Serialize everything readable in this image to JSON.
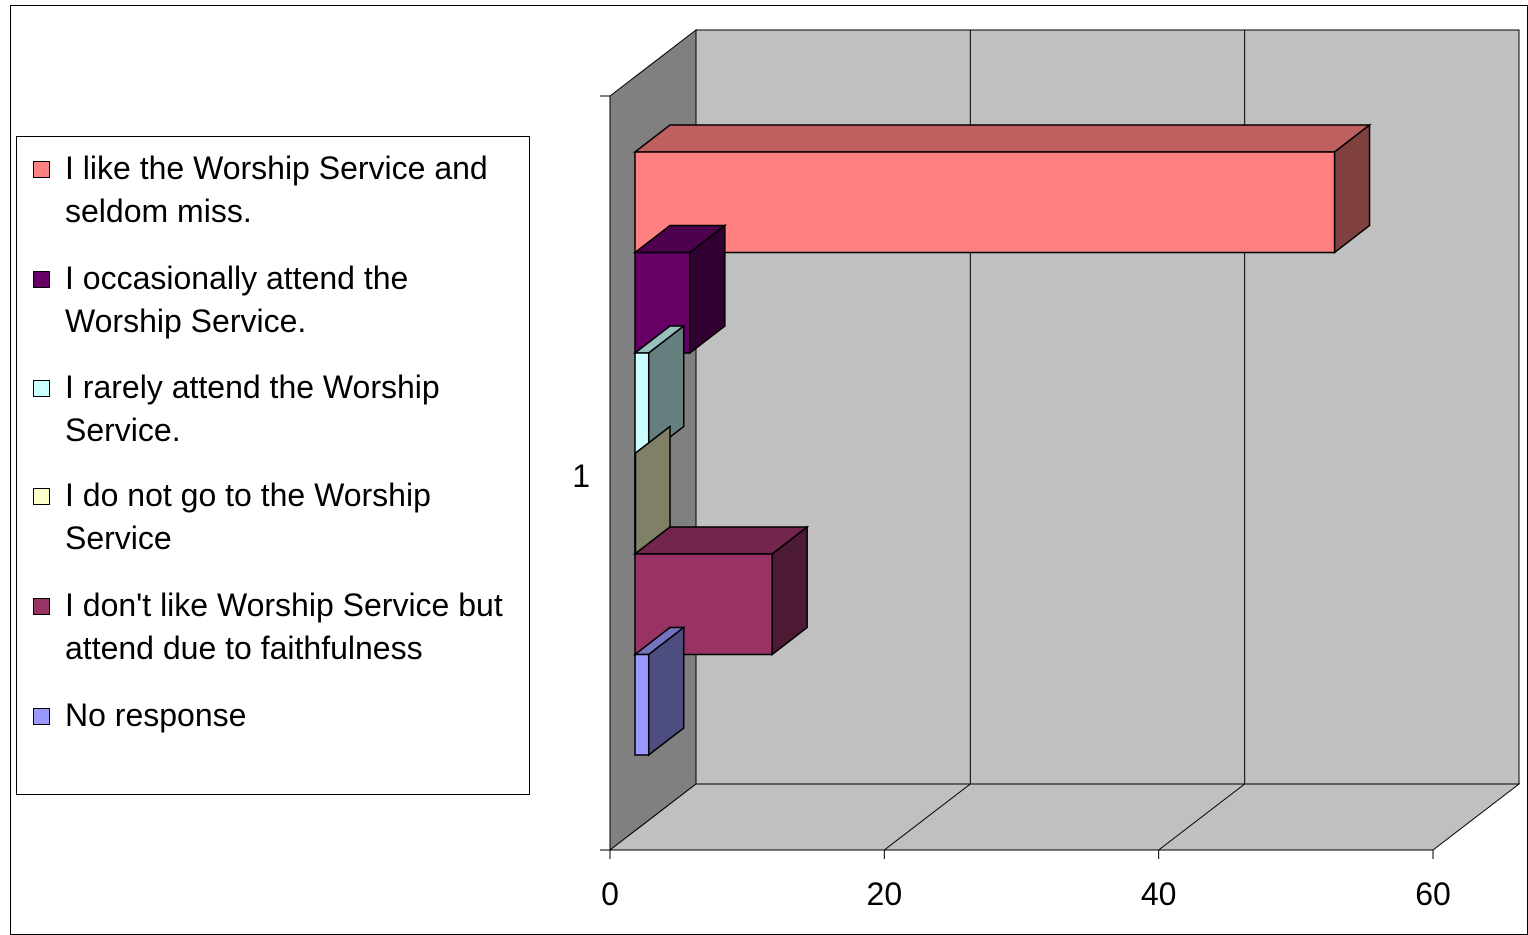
{
  "chart_data": {
    "type": "bar",
    "orientation": "horizontal",
    "three_d": true,
    "categories": [
      "1"
    ],
    "series": [
      {
        "name": "I like the Worship Service and seldom miss.",
        "values": [
          51
        ],
        "color": "#FF8080"
      },
      {
        "name": "I occasionally attend the Worship Service.",
        "values": [
          4
        ],
        "color": "#660066"
      },
      {
        "name": " I rarely attend the Worship Service.",
        "values": [
          1
        ],
        "color": "#CCFFFF"
      },
      {
        "name": "I do not go to the Worship Service",
        "values": [
          0
        ],
        "color": "#FFFFCC"
      },
      {
        "name": "I don't like Worship Service but attend due to faithfulness",
        "values": [
          10
        ],
        "color": "#993366"
      },
      {
        "name": "No response",
        "values": [
          1
        ],
        "color": "#9999FF"
      }
    ],
    "xlim": [
      0,
      60
    ],
    "xticks": [
      "0",
      "20",
      "40",
      "60"
    ],
    "yticks": [
      "1"
    ],
    "grid": true,
    "legend_position": "left",
    "title": "",
    "xlabel": "",
    "ylabel": ""
  }
}
